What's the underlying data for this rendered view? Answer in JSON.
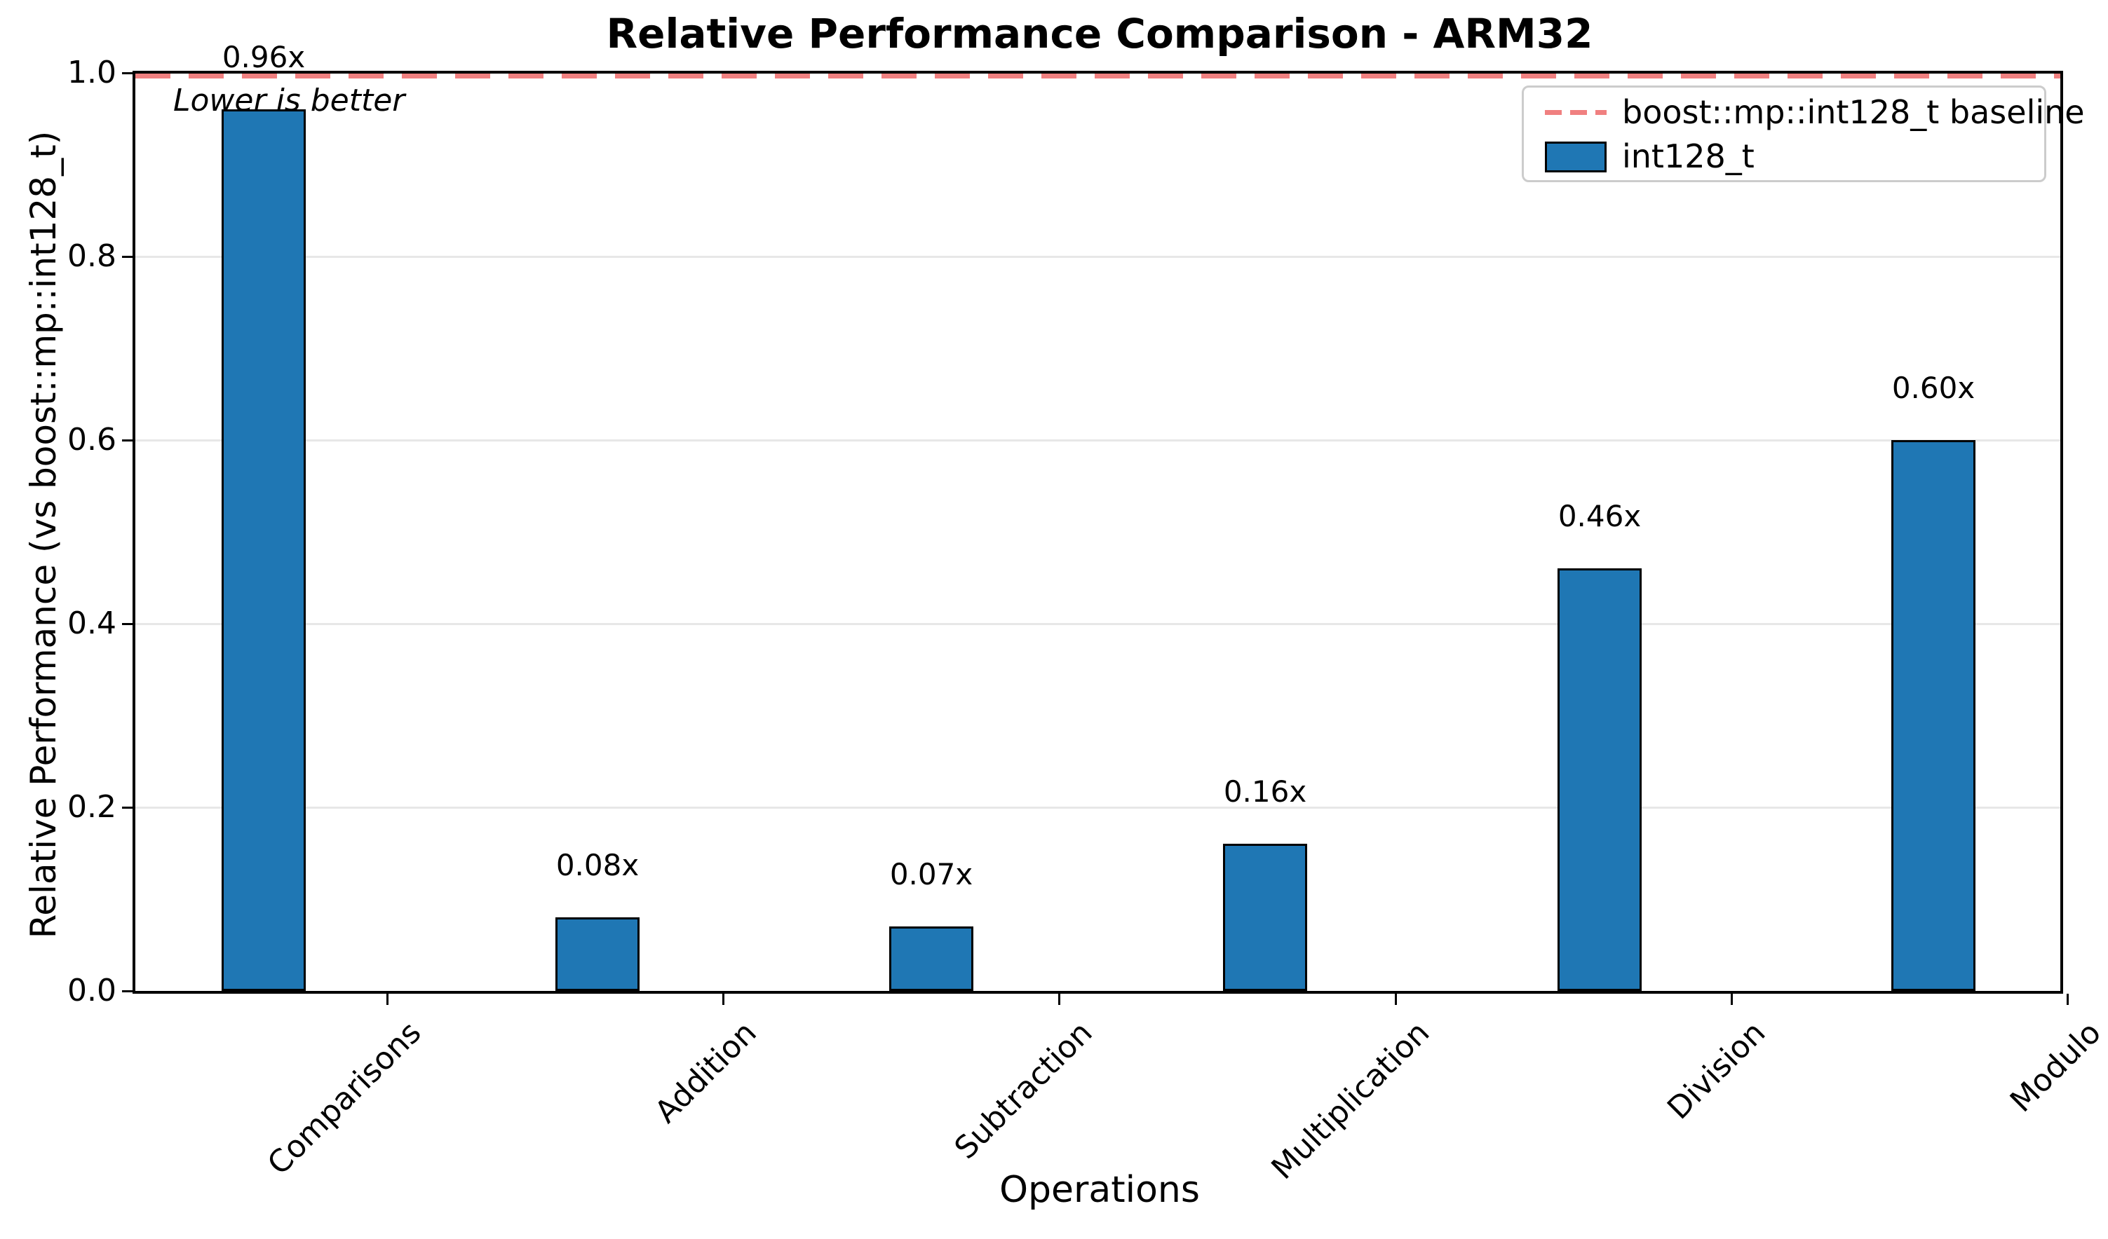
{
  "title": "Relative Performance Comparison - ARM32",
  "annotation": "Lower is better",
  "axes": {
    "xlabel": "Operations",
    "ylabel": "Relative Performance (vs boost::mp::int128_t)",
    "yticks": [
      "1.0",
      "0.8",
      "0.6",
      "0.4",
      "0.2",
      "0.0"
    ]
  },
  "legend": {
    "baseline_label": "boost::mp::int128_t baseline",
    "series_label": "int128_t"
  },
  "colors": {
    "bar": "#1f77b4",
    "bar_edge": "#000000",
    "baseline": "#f08080",
    "grid": "#e7e7e7",
    "legend_border": "#cccccc"
  },
  "chart_data": {
    "type": "bar",
    "title": "Relative Performance Comparison - ARM32",
    "xlabel": "Operations",
    "ylabel": "Relative Performance (vs boost::mp::int128_t)",
    "categories": [
      "Comparisons",
      "Addition",
      "Subtraction",
      "Multiplication",
      "Division",
      "Modulo"
    ],
    "series": [
      {
        "name": "int128_t",
        "values": [
          0.96,
          0.08,
          0.07,
          0.16,
          0.46,
          0.6
        ]
      }
    ],
    "value_labels": [
      "0.96x",
      "0.08x",
      "0.07x",
      "0.16x",
      "0.46x",
      "0.60x"
    ],
    "baseline": {
      "value": 1.0,
      "label": "boost::mp::int128_t baseline",
      "style": "dashed"
    },
    "ylim": [
      0.0,
      1.0
    ],
    "yticks": [
      0.0,
      0.2,
      0.4,
      0.6,
      0.8,
      1.0
    ],
    "grid": "horizontal",
    "legend_position": "upper right",
    "annotation": "Lower is better"
  }
}
